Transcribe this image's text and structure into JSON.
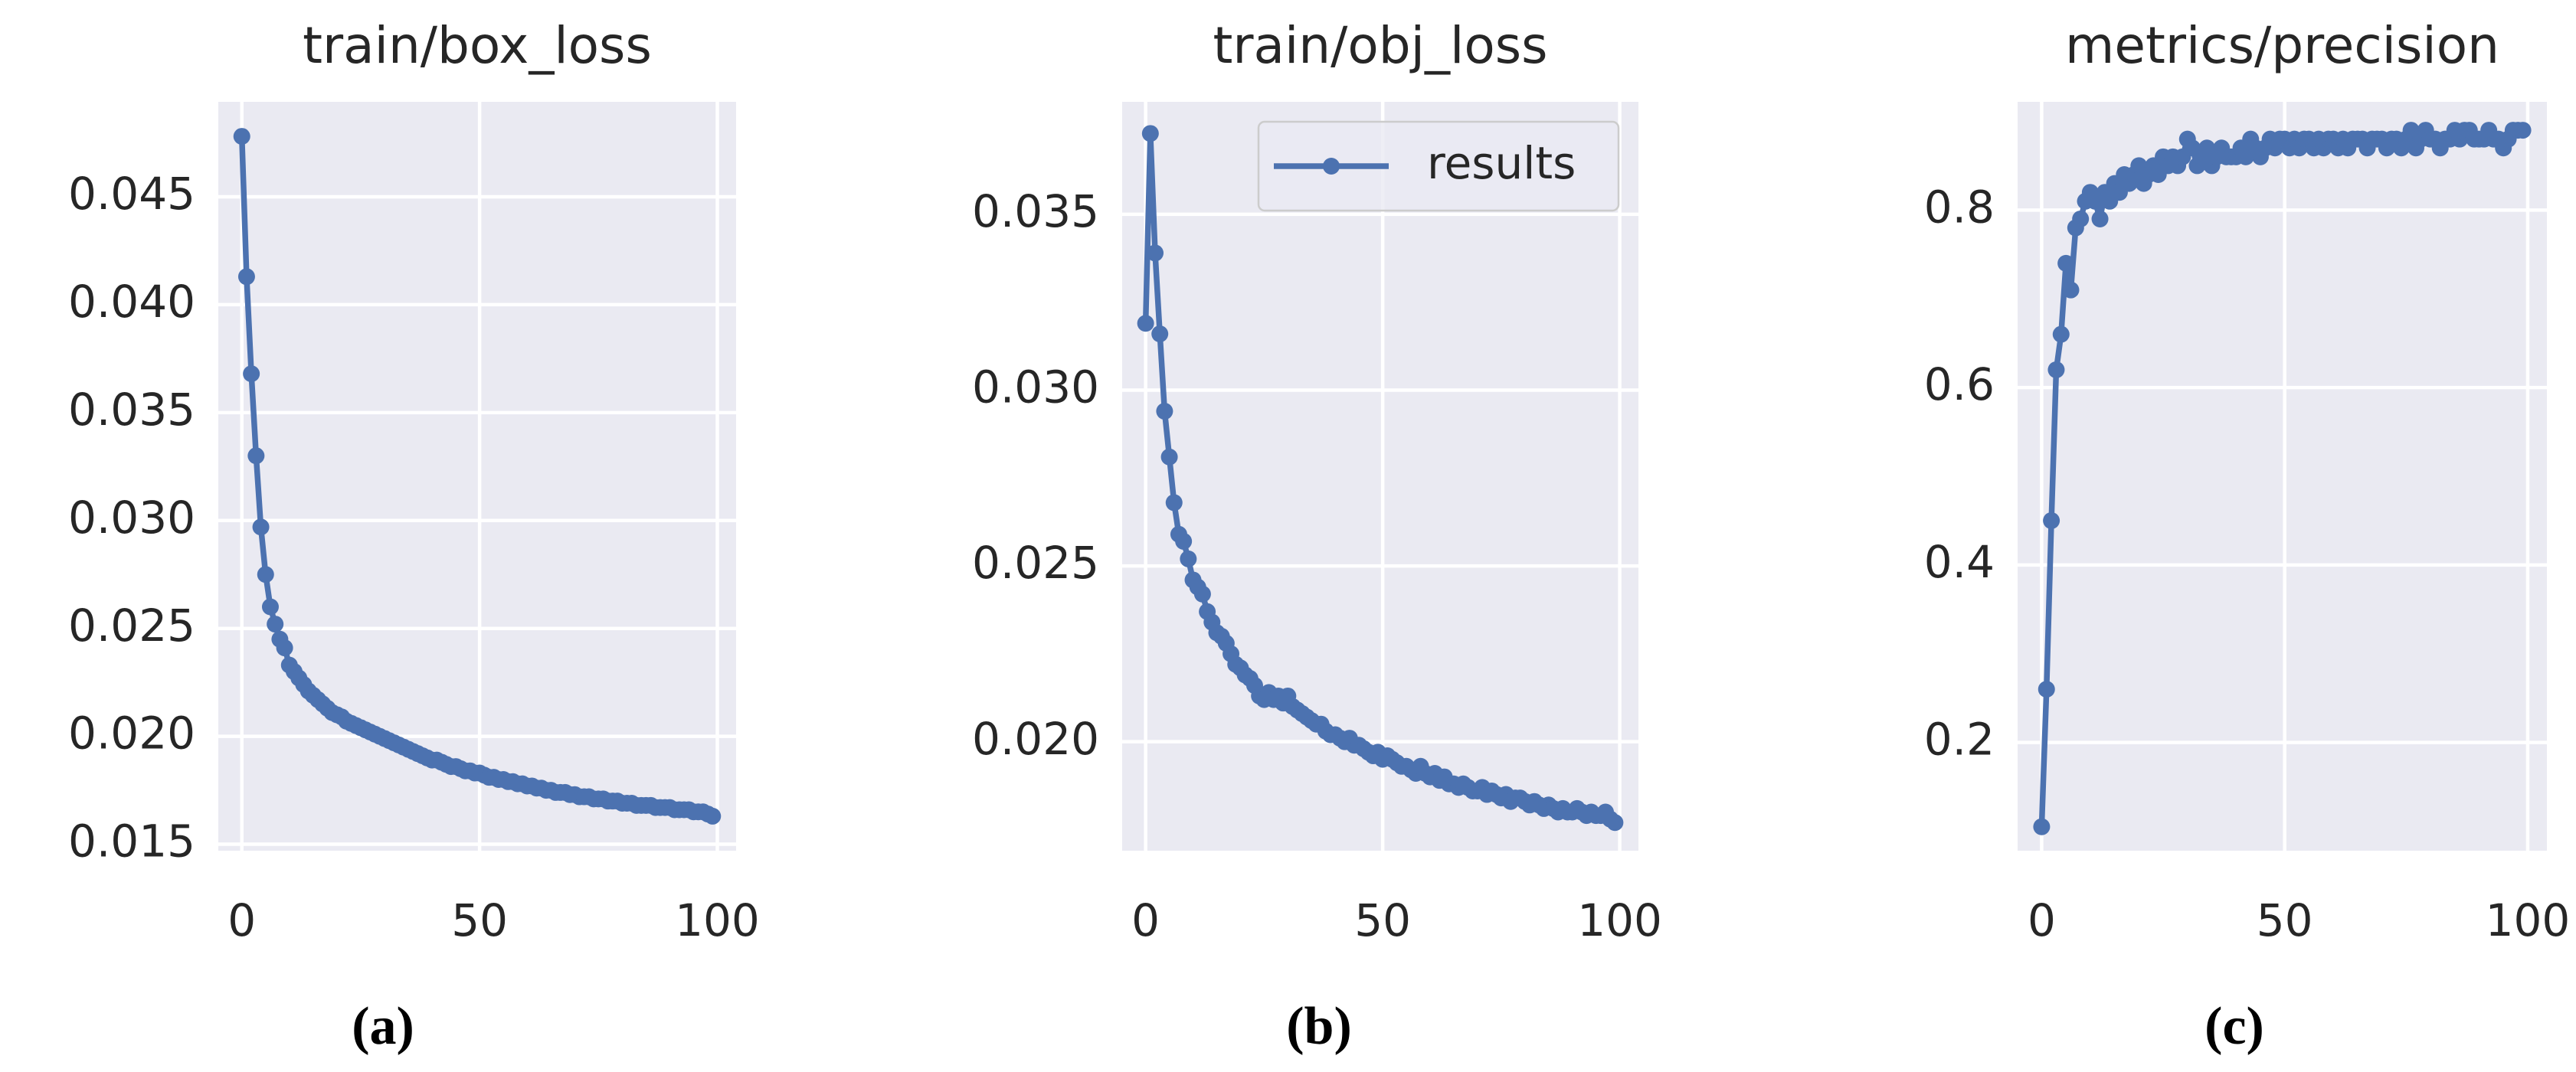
{
  "chart_data": [
    {
      "type": "line",
      "title": "train/box_loss",
      "caption": "(a)",
      "x": [
        0,
        1,
        2,
        3,
        4,
        5,
        6,
        7,
        8,
        9,
        10,
        11,
        12,
        13,
        14,
        15,
        16,
        17,
        18,
        19,
        20,
        21,
        22,
        23,
        24,
        25,
        26,
        27,
        28,
        29,
        30,
        31,
        32,
        33,
        34,
        35,
        36,
        37,
        38,
        39,
        40,
        41,
        42,
        43,
        44,
        45,
        46,
        47,
        48,
        49,
        50,
        51,
        52,
        53,
        54,
        55,
        56,
        57,
        58,
        59,
        60,
        61,
        62,
        63,
        64,
        65,
        66,
        67,
        68,
        69,
        70,
        71,
        72,
        73,
        74,
        75,
        76,
        77,
        78,
        79,
        80,
        81,
        82,
        83,
        84,
        85,
        86,
        87,
        88,
        89,
        90,
        91,
        92,
        93,
        94,
        95,
        96,
        97,
        98,
        99
      ],
      "series": [
        {
          "color": "#4c72b0",
          "values": [
            0.0478,
            0.0413,
            0.0368,
            0.033,
            0.0297,
            0.0275,
            0.026,
            0.0252,
            0.0245,
            0.0241,
            0.0233,
            0.023,
            0.0227,
            0.0224,
            0.0221,
            0.0219,
            0.0217,
            0.0215,
            0.0213,
            0.0211,
            0.021,
            0.0209,
            0.0207,
            0.0206,
            0.0205,
            0.0204,
            0.0203,
            0.0202,
            0.0201,
            0.02,
            0.0199,
            0.0198,
            0.0197,
            0.0196,
            0.0195,
            0.0194,
            0.0193,
            0.0192,
            0.0191,
            0.019,
            0.0189,
            0.0189,
            0.0188,
            0.0187,
            0.0186,
            0.0186,
            0.0185,
            0.0184,
            0.0184,
            0.0183,
            0.0183,
            0.0182,
            0.0181,
            0.0181,
            0.018,
            0.018,
            0.0179,
            0.0179,
            0.0178,
            0.0178,
            0.0177,
            0.0177,
            0.0176,
            0.0176,
            0.0175,
            0.0175,
            0.0174,
            0.0174,
            0.0174,
            0.0173,
            0.0173,
            0.0172,
            0.0172,
            0.0172,
            0.0171,
            0.0171,
            0.0171,
            0.017,
            0.017,
            0.017,
            0.0169,
            0.0169,
            0.0169,
            0.0168,
            0.0168,
            0.0168,
            0.0168,
            0.0167,
            0.0167,
            0.0167,
            0.0167,
            0.0166,
            0.0166,
            0.0166,
            0.0166,
            0.0165,
            0.0165,
            0.0165,
            0.0164,
            0.0163
          ]
        }
      ],
      "xlim": [
        -4.95,
        103.95
      ],
      "xticks": [
        0,
        50,
        100
      ],
      "ylim": [
        0.0147,
        0.0494
      ],
      "yticks": [
        0.015,
        {
          "value": 0.02,
          "label": "0.020"
        },
        0.025,
        {
          "value": 0.03,
          "label": "0.030"
        },
        0.035,
        {
          "value": 0.04,
          "label": "0.040"
        },
        0.045
      ],
      "grid": true
    },
    {
      "type": "line",
      "title": "train/obj_loss",
      "caption": "(b)",
      "x": [
        0,
        1,
        2,
        3,
        4,
        5,
        6,
        7,
        8,
        9,
        10,
        11,
        12,
        13,
        14,
        15,
        16,
        17,
        18,
        19,
        20,
        21,
        22,
        23,
        24,
        25,
        26,
        27,
        28,
        29,
        30,
        31,
        32,
        33,
        34,
        35,
        36,
        37,
        38,
        39,
        40,
        41,
        42,
        43,
        44,
        45,
        46,
        47,
        48,
        49,
        50,
        51,
        52,
        53,
        54,
        55,
        56,
        57,
        58,
        59,
        60,
        61,
        62,
        63,
        64,
        65,
        66,
        67,
        68,
        69,
        70,
        71,
        72,
        73,
        74,
        75,
        76,
        77,
        78,
        79,
        80,
        81,
        82,
        83,
        84,
        85,
        86,
        87,
        88,
        89,
        90,
        91,
        92,
        93,
        94,
        95,
        96,
        97,
        98,
        99
      ],
      "series": [
        {
          "name": "results",
          "color": "#4c72b0",
          "values": [
            0.0319,
            0.0373,
            0.0339,
            0.0316,
            0.0294,
            0.0281,
            0.0268,
            0.0259,
            0.0257,
            0.0252,
            0.0246,
            0.0244,
            0.0242,
            0.0237,
            0.0234,
            0.0231,
            0.023,
            0.0228,
            0.0225,
            0.0222,
            0.0221,
            0.0219,
            0.0218,
            0.0216,
            0.0213,
            0.0212,
            0.0214,
            0.0212,
            0.0213,
            0.0211,
            0.0213,
            0.021,
            0.0209,
            0.0208,
            0.0207,
            0.0206,
            0.0205,
            0.0205,
            0.0203,
            0.0202,
            0.0202,
            0.0201,
            0.02,
            0.0201,
            0.0199,
            0.0199,
            0.0198,
            0.0197,
            0.0196,
            0.0197,
            0.0195,
            0.0196,
            0.0195,
            0.0194,
            0.0193,
            0.0193,
            0.0192,
            0.0191,
            0.0193,
            0.0191,
            0.019,
            0.0191,
            0.0189,
            0.019,
            0.0188,
            0.0188,
            0.0187,
            0.0188,
            0.0187,
            0.0186,
            0.0186,
            0.0187,
            0.0185,
            0.0186,
            0.0185,
            0.0184,
            0.0185,
            0.0183,
            0.0184,
            0.0184,
            0.0183,
            0.0182,
            0.0183,
            0.0182,
            0.0181,
            0.0182,
            0.0181,
            0.018,
            0.0181,
            0.018,
            0.018,
            0.0181,
            0.018,
            0.0179,
            0.018,
            0.0179,
            0.0179,
            0.018,
            0.0178,
            0.0177
          ]
        }
      ],
      "xlim": [
        -4.95,
        103.95
      ],
      "xticks": [
        0,
        50,
        100
      ],
      "ylim": [
        0.0169,
        0.0382
      ],
      "yticks": [
        {
          "value": 0.02,
          "label": "0.020"
        },
        0.025,
        {
          "value": 0.03,
          "label": "0.030"
        },
        0.035
      ],
      "grid": true,
      "legend": "upper right"
    },
    {
      "type": "line",
      "title": "metrics/precision",
      "caption": "(c)",
      "x": [
        0,
        1,
        2,
        3,
        4,
        5,
        6,
        7,
        8,
        9,
        10,
        11,
        12,
        13,
        14,
        15,
        16,
        17,
        18,
        19,
        20,
        21,
        22,
        23,
        24,
        25,
        26,
        27,
        28,
        29,
        30,
        31,
        32,
        33,
        34,
        35,
        36,
        37,
        38,
        39,
        40,
        41,
        42,
        43,
        44,
        45,
        46,
        47,
        48,
        49,
        50,
        51,
        52,
        53,
        54,
        55,
        56,
        57,
        58,
        59,
        60,
        61,
        62,
        63,
        64,
        65,
        66,
        67,
        68,
        69,
        70,
        71,
        72,
        73,
        74,
        75,
        76,
        77,
        78,
        79,
        80,
        81,
        82,
        83,
        84,
        85,
        86,
        87,
        88,
        89,
        90,
        91,
        92,
        93,
        94,
        95,
        96,
        97,
        98,
        99
      ],
      "series": [
        {
          "color": "#4c72b0",
          "values": [
            0.105,
            0.26,
            0.45,
            0.62,
            0.66,
            0.74,
            0.71,
            0.78,
            0.79,
            0.81,
            0.82,
            0.81,
            0.79,
            0.82,
            0.81,
            0.83,
            0.82,
            0.84,
            0.83,
            0.84,
            0.85,
            0.83,
            0.84,
            0.85,
            0.84,
            0.86,
            0.85,
            0.86,
            0.85,
            0.86,
            0.88,
            0.87,
            0.85,
            0.86,
            0.87,
            0.85,
            0.86,
            0.87,
            0.86,
            0.86,
            0.86,
            0.87,
            0.86,
            0.88,
            0.87,
            0.86,
            0.87,
            0.88,
            0.87,
            0.88,
            0.88,
            0.87,
            0.88,
            0.87,
            0.88,
            0.88,
            0.87,
            0.88,
            0.87,
            0.88,
            0.88,
            0.87,
            0.88,
            0.87,
            0.88,
            0.88,
            0.88,
            0.87,
            0.88,
            0.88,
            0.88,
            0.87,
            0.88,
            0.88,
            0.87,
            0.88,
            0.89,
            0.87,
            0.88,
            0.89,
            0.88,
            0.88,
            0.87,
            0.88,
            0.88,
            0.89,
            0.88,
            0.89,
            0.89,
            0.88,
            0.88,
            0.88,
            0.89,
            0.88,
            0.88,
            0.87,
            0.88,
            0.89,
            0.89,
            0.89
          ]
        }
      ],
      "xlim": [
        -4.95,
        103.95
      ],
      "xticks": [
        0,
        50,
        100
      ],
      "ylim": [
        0.078,
        0.922
      ],
      "yticks": [
        0.2,
        0.4,
        0.6,
        0.8
      ],
      "grid": true
    }
  ]
}
